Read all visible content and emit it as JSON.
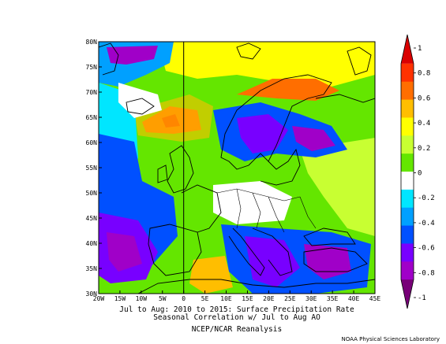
{
  "caption": {
    "line1": "Jul to Aug: 2010 to 2015: Surface Precipitation Rate",
    "line2": "Seasonal Correlation w/ Jul to Aug AO",
    "line3": "NCEP/NCAR Reanalysis"
  },
  "credit": "NOAA Physical Sciences Laboratory",
  "map": {
    "lon_range": [
      -20,
      45
    ],
    "lat_range": [
      30,
      80
    ],
    "lon_ticks": [
      "20W",
      "15W",
      "10W",
      "5W",
      "0",
      "5E",
      "10E",
      "15E",
      "20E",
      "25E",
      "30E",
      "35E",
      "40E",
      "45E"
    ],
    "lat_ticks": [
      "30N",
      "35N",
      "40N",
      "45N",
      "50N",
      "55N",
      "60N",
      "65N",
      "70N",
      "75N",
      "80N"
    ]
  },
  "colorbar": {
    "min": -1,
    "max": 1,
    "labels": [
      "1",
      "0.8",
      "0.6",
      "0.4",
      "0.2",
      "0",
      "-0.2",
      "-0.4",
      "-0.6",
      "-0.8",
      "-1"
    ],
    "colors": [
      "#da0000",
      "#ff3200",
      "#ff6e00",
      "#ffbe00",
      "#ffff00",
      "#c8ff32",
      "#64e600",
      "#ffffff",
      "#00e6ff",
      "#00a0ff",
      "#0050ff",
      "#7800ff",
      "#a000c8",
      "#780078"
    ]
  }
}
